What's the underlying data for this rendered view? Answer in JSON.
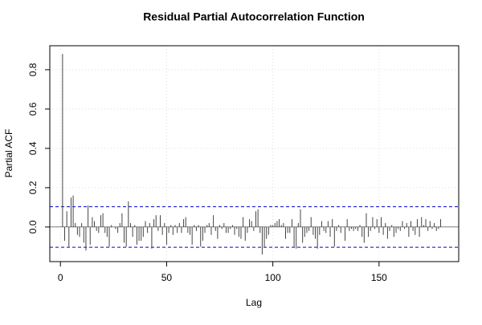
{
  "chart_data": {
    "type": "pacf",
    "title": "Residual Partial Autocorrelation Function",
    "x_label": "Lag",
    "y_label": "Partial ACF",
    "x": [
      1,
      2,
      3,
      4,
      5,
      6,
      7,
      8,
      9,
      10,
      11,
      12,
      13,
      14,
      15,
      16,
      17,
      18,
      19,
      20,
      21,
      22,
      23,
      24,
      25,
      26,
      27,
      28,
      29,
      30,
      31,
      32,
      33,
      34,
      35,
      36,
      37,
      38,
      39,
      40,
      41,
      42,
      43,
      44,
      45,
      46,
      47,
      48,
      49,
      50,
      51,
      52,
      53,
      54,
      55,
      56,
      57,
      58,
      59,
      60,
      61,
      62,
      63,
      64,
      65,
      66,
      67,
      68,
      69,
      70,
      71,
      72,
      73,
      74,
      75,
      76,
      77,
      78,
      79,
      80,
      81,
      82,
      83,
      84,
      85,
      86,
      87,
      88,
      89,
      90,
      91,
      92,
      93,
      94,
      95,
      96,
      97,
      98,
      99,
      100,
      101,
      102,
      103,
      104,
      105,
      106,
      107,
      108,
      109,
      110,
      111,
      112,
      113,
      114,
      115,
      116,
      117,
      118,
      119,
      120,
      121,
      122,
      123,
      124,
      125,
      126,
      127,
      128,
      129,
      130,
      131,
      132,
      133,
      134,
      135,
      136,
      137,
      138,
      139,
      140,
      141,
      142,
      143,
      144,
      145,
      146,
      147,
      148,
      149,
      150,
      151,
      152,
      153,
      154,
      155,
      156,
      157,
      158,
      159,
      160,
      161,
      162,
      163,
      164,
      165,
      166,
      167,
      168,
      169,
      170,
      171,
      172,
      173,
      174,
      175,
      176,
      177,
      178,
      179,
      180
    ],
    "values": [
      0.88,
      -0.07,
      0.08,
      -0.1,
      0.15,
      0.16,
      0.02,
      -0.04,
      -0.05,
      0.02,
      -0.08,
      -0.12,
      0.11,
      -0.09,
      0.05,
      0.03,
      -0.02,
      -0.03,
      0.06,
      0.07,
      -0.03,
      -0.05,
      -0.1,
      0.01,
      0.0,
      -0.01,
      -0.03,
      0.02,
      0.07,
      -0.08,
      -0.1,
      0.13,
      0.02,
      -0.05,
      0.01,
      -0.09,
      -0.07,
      -0.07,
      -0.05,
      0.03,
      -0.03,
      0.02,
      -0.11,
      0.04,
      0.06,
      -0.02,
      0.06,
      -0.04,
      0.02,
      -0.09,
      -0.03,
      0.01,
      -0.04,
      0.01,
      -0.03,
      0.02,
      -0.03,
      0.04,
      0.05,
      -0.03,
      -0.04,
      -0.09,
      0.01,
      -0.02,
      0.01,
      -0.1,
      -0.07,
      -0.03,
      0.01,
      0.02,
      -0.04,
      0.06,
      -0.02,
      -0.06,
      0.01,
      -0.01,
      0.02,
      -0.03,
      -0.03,
      -0.01,
      0.01,
      -0.04,
      -0.01,
      -0.05,
      -0.06,
      0.05,
      -0.07,
      -0.03,
      0.04,
      0.03,
      -0.02,
      0.08,
      0.09,
      -0.03,
      -0.14,
      -0.1,
      -0.06,
      -0.04,
      0.01,
      0.01,
      0.02,
      0.03,
      0.04,
      0.01,
      0.02,
      -0.06,
      -0.03,
      -0.03,
      0.04,
      -0.1,
      -0.11,
      0.02,
      0.09,
      -0.08,
      -0.05,
      -0.03,
      -0.02,
      0.05,
      -0.04,
      -0.06,
      -0.11,
      -0.04,
      0.03,
      -0.02,
      -0.03,
      0.03,
      -0.05,
      0.04,
      -0.1,
      -0.02,
      0.01,
      -0.03,
      0.0,
      -0.07,
      0.04,
      -0.02,
      -0.01,
      -0.02,
      -0.01,
      -0.02,
      0.01,
      -0.05,
      -0.08,
      0.07,
      -0.05,
      -0.02,
      0.05,
      -0.01,
      0.04,
      -0.03,
      0.05,
      -0.04,
      0.02,
      -0.06,
      -0.02,
      0.01,
      -0.05,
      -0.03,
      -0.01,
      -0.02,
      0.03,
      -0.01,
      0.02,
      -0.05,
      0.03,
      -0.02,
      -0.04,
      0.04,
      -0.05,
      0.05,
      0.01,
      0.04,
      -0.02,
      0.03,
      -0.01,
      0.02,
      -0.02,
      -0.01,
      0.04,
      0.0
    ],
    "color": "#444444",
    "ci": [
      0.103,
      -0.103
    ],
    "ci_color": "#0000cd",
    "xlim": [
      -5,
      187.5
    ],
    "ylim": [
      -0.176,
      0.922
    ],
    "xticks": [
      0,
      50,
      100,
      150
    ],
    "yticks": [
      {
        "value": 0,
        "label": "0.0"
      },
      0.2,
      0.4,
      0.6,
      0.8
    ],
    "grid": true
  }
}
